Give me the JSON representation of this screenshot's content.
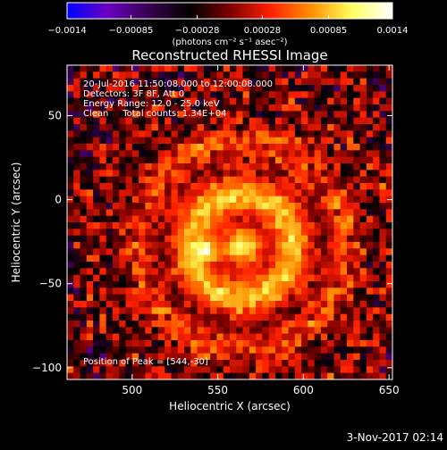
{
  "chart_data": {
    "type": "heatmap",
    "title": "Reconstructed RHESSI Image",
    "xlabel": "Heliocentric X (arcsec)",
    "ylabel": "Heliocentric Y (arcsec)",
    "xlim": [
      462,
      652
    ],
    "ylim": [
      -107,
      80
    ],
    "x_ticks": [
      "500",
      "550",
      "600",
      "650"
    ],
    "x_tick_values": [
      500,
      550,
      600,
      650
    ],
    "y_ticks": [
      "50",
      "0",
      "−50",
      "−100"
    ],
    "y_tick_values": [
      50,
      0,
      -50,
      -100
    ],
    "colorbar": {
      "range": [
        -0.0014,
        0.0014
      ],
      "ticks": [
        "−0.0014",
        "−0.00085",
        "−0.00028",
        "0.00028",
        "0.00085",
        "0.0014"
      ],
      "tick_values": [
        -0.0014,
        -0.00085,
        -0.00028,
        0.00028,
        0.00085,
        0.0014
      ],
      "unit_label": "(photons cm⁻² s⁻¹ asec⁻²)",
      "colors": [
        "#0000ff",
        "#6a00c0",
        "#3a0050",
        "#000000",
        "#7a0000",
        "#ff2000",
        "#ff9000",
        "#ffff60",
        "#ffffff"
      ]
    },
    "annotations": {
      "time_range": "20-Jul-2016 11:50:08.000 to 12:00:08.000",
      "detectors": "Detectors: 3F 8F, Att 0",
      "energy_range": "Energy Range: 12.0 - 25.0 keV",
      "method": "Clean     Total counts: 1.34E+04",
      "peak": "Position of Peak = [544,-30]"
    },
    "peak": [
      544,
      -30
    ]
  },
  "footer": {
    "timestamp": "3-Nov-2017 02:14"
  }
}
